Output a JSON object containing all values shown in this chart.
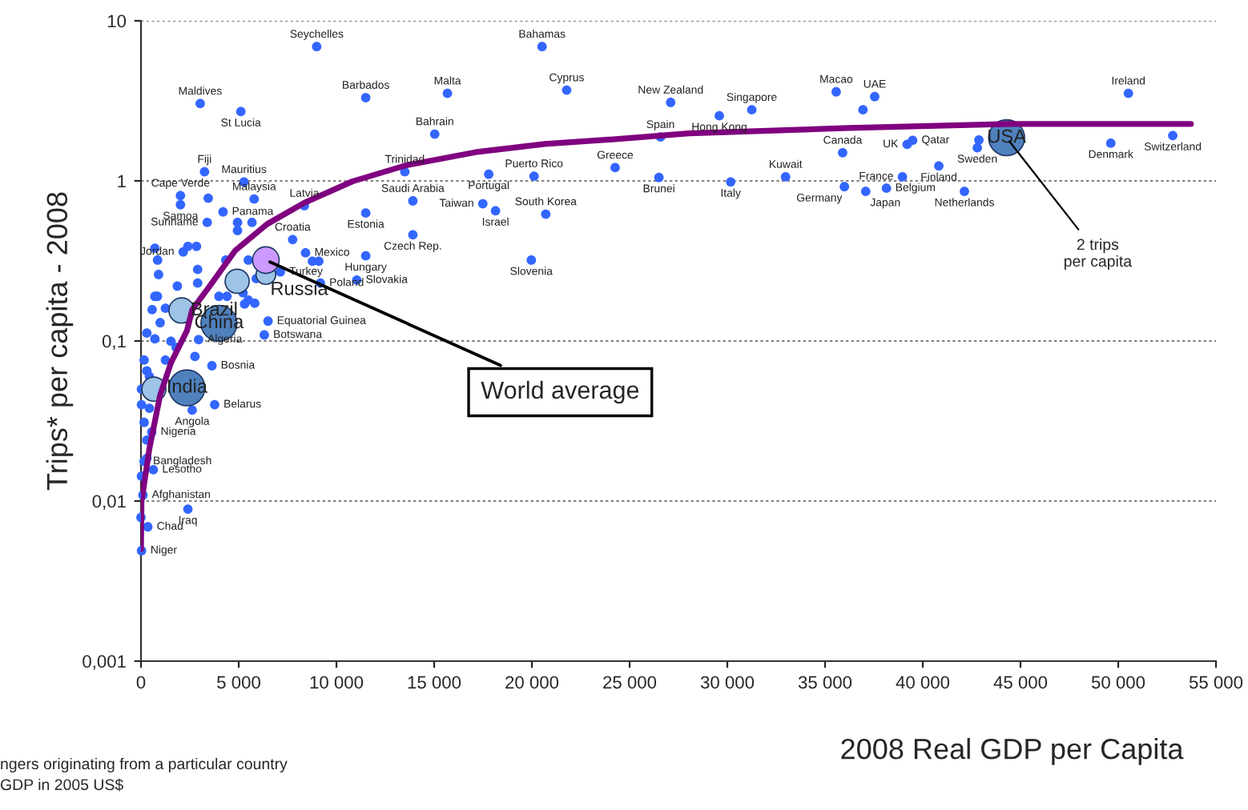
{
  "chart_data": {
    "type": "scatter",
    "xlabel": "2008 Real GDP per Capita",
    "ylabel": "Trips* per capita - 2008",
    "log": "y",
    "grid": "y",
    "legend": false,
    "xlim": [
      0,
      55000
    ],
    "ylim": [
      0.001,
      10
    ],
    "xticks": [
      0,
      {
        "value": 5000,
        "label": "5 000"
      },
      {
        "value": 10000,
        "label": "10 000"
      },
      {
        "value": 15000,
        "label": "15 000"
      },
      {
        "value": 20000,
        "label": "20 000"
      },
      {
        "value": 25000,
        "label": "25 000"
      },
      {
        "value": 30000,
        "label": "30 000"
      },
      {
        "value": 35000,
        "label": "35 000"
      },
      {
        "value": 40000,
        "label": "40 000"
      },
      {
        "value": 45000,
        "label": "45 000"
      },
      {
        "value": 50000,
        "label": "50 000"
      },
      {
        "value": 55000,
        "label": "55 000"
      }
    ],
    "yticks": [
      {
        "value": 0.001,
        "label": "0,001"
      },
      {
        "value": 0.01,
        "label": "0,01"
      },
      {
        "value": 0.1,
        "label": "0,1"
      },
      1,
      10
    ],
    "series": [
      {
        "color": "#3366ff",
        "x": [
          8990,
          3030,
          5110,
          11500,
          15680,
          15030,
          3250,
          5270,
          13500,
          20110,
          17790,
          17490,
          18140,
          20710,
          13910,
          11500,
          13910,
          11500,
          11040,
          19970,
          8360,
          7760,
          8420,
          7130,
          9180,
          5790,
          2020,
          2020,
          4200,
          3390,
          2160,
          6500,
          6310,
          2950,
          3630,
          3770,
          2620,
          550,
          160,
          630,
          100,
          2400,
          350,
          30,
          20520,
          21780,
          27100,
          29590,
          31250,
          26580,
          24260,
          26500,
          30170,
          32980,
          35570,
          37540,
          35900,
          38960,
          35990,
          37080,
          38140,
          40820,
          39200,
          39480,
          42130,
          42790,
          49620,
          52790,
          50520,
          36940,
          42870,
          710,
          850,
          900,
          2400,
          2840,
          2900,
          2900,
          3440,
          4940,
          4940,
          5680,
          4340,
          5490,
          5900,
          8770,
          9100,
          3990,
          4400,
          5220,
          5490,
          5820,
          5300,
          1860,
          1250,
          710,
          840,
          570,
          980,
          300,
          710,
          1530,
          160,
          1250,
          300,
          430,
          1800,
          2760,
          25,
          25,
          430,
          160,
          300,
          300,
          25,
          0
        ],
        "values": [
          6.9,
          3.04,
          2.71,
          3.31,
          3.52,
          1.96,
          1.14,
          0.985,
          1.14,
          1.07,
          1.1,
          0.72,
          0.65,
          0.62,
          0.75,
          0.63,
          0.46,
          0.34,
          0.24,
          0.32,
          0.7,
          0.43,
          0.355,
          0.27,
          0.23,
          0.77,
          0.81,
          0.71,
          0.64,
          0.55,
          0.36,
          0.133,
          0.109,
          0.102,
          0.07,
          0.04,
          0.037,
          0.027,
          0.0177,
          0.0157,
          0.0109,
          0.0089,
          0.0069,
          0.0049,
          6.9,
          3.69,
          3.09,
          2.55,
          2.78,
          1.88,
          1.21,
          1.05,
          0.985,
          1.06,
          3.6,
          3.36,
          1.5,
          1.06,
          0.92,
          0.86,
          0.9,
          1.24,
          1.69,
          1.79,
          0.86,
          1.61,
          1.72,
          1.92,
          3.52,
          2.78,
          1.8,
          0.38,
          0.32,
          0.26,
          0.39,
          0.39,
          0.28,
          0.23,
          0.78,
          0.55,
          0.49,
          0.55,
          0.32,
          0.32,
          0.245,
          0.315,
          0.315,
          0.19,
          0.19,
          0.2,
          0.18,
          0.172,
          0.17,
          0.22,
          0.16,
          0.19,
          0.19,
          0.157,
          0.13,
          0.112,
          0.103,
          0.0995,
          0.076,
          0.076,
          0.065,
          0.06,
          0.091,
          0.08,
          0.05,
          0.04,
          0.038,
          0.031,
          0.024,
          0.0185,
          0.0143,
          0.0079
        ]
      },
      {
        "type": "bubble",
        "x": [
          660,
          2080,
          4920,
          6390,
          6390,
          44290,
          3990,
          2350
        ],
        "values": [
          0.05,
          0.155,
          0.236,
          0.26,
          0.32,
          1.86,
          0.129,
          0.051
        ],
        "sizes": [
          0.45,
          0.5,
          0.45,
          0.3,
          0.55,
          1,
          1,
          1
        ],
        "colors": [
          "#9dc3e6",
          "#9dc3e6",
          "#9dc3e6",
          "#9dc3e6",
          "#cc99ff",
          "#4f81bd",
          "#4f81bd",
          "#4f81bd"
        ]
      },
      {
        "type": "line",
        "color": "#800080",
        "x": [
          0,
          25,
          434,
          984,
          1533,
          2353,
          2623,
          3443,
          4812,
          6451,
          8361,
          10820,
          13550,
          17110,
          20660,
          23940,
          28030,
          36230,
          44430,
          53720
        ],
        "values": [
          0.005,
          0.0099,
          0.0214,
          0.046,
          0.073,
          0.116,
          0.157,
          0.214,
          0.366,
          0.537,
          0.73,
          0.993,
          1.25,
          1.51,
          1.7,
          1.81,
          1.98,
          2.14,
          2.27,
          2.27
        ]
      }
    ],
    "annotations": [
      {
        "text": "Seychelles",
        "x": 8990,
        "y": 6.9
      },
      {
        "text": "Maldives",
        "x": 3030,
        "y": 3.04
      },
      {
        "text": "St Lucia",
        "x": 5110,
        "y": 2.71
      },
      {
        "text": "Barbados",
        "x": 11500,
        "y": 3.31
      },
      {
        "text": "Malta",
        "x": 15680,
        "y": 3.52
      },
      {
        "text": "Bahrain",
        "x": 15030,
        "y": 1.96
      },
      {
        "text": "Fiji",
        "x": 3250,
        "y": 1.14
      },
      {
        "text": "Mauritius",
        "x": 5270,
        "y": 0.985
      },
      {
        "text": "Trinidad",
        "x": 13500,
        "y": 1.14
      },
      {
        "text": "Puerto Rico",
        "x": 20110,
        "y": 1.07
      },
      {
        "text": "Portugal",
        "x": 17790,
        "y": 1.1
      },
      {
        "text": "Taiwan",
        "x": 17490,
        "y": 0.72
      },
      {
        "text": "Israel",
        "x": 18140,
        "y": 0.65
      },
      {
        "text": "South Korea",
        "x": 20710,
        "y": 0.62
      },
      {
        "text": "Saudi Arabia",
        "x": 13910,
        "y": 0.75
      },
      {
        "text": "Estonia",
        "x": 11500,
        "y": 0.63
      },
      {
        "text": "Czech Rep.",
        "x": 13910,
        "y": 0.46
      },
      {
        "text": "Hungary",
        "x": 11500,
        "y": 0.34
      },
      {
        "text": "Slovakia",
        "x": 11040,
        "y": 0.24
      },
      {
        "text": "Slovenia",
        "x": 19970,
        "y": 0.32
      },
      {
        "text": "Latvia",
        "x": 8360,
        "y": 0.7
      },
      {
        "text": "Croatia",
        "x": 7760,
        "y": 0.43
      },
      {
        "text": "Mexico",
        "x": 8420,
        "y": 0.355
      },
      {
        "text": "Turkey",
        "x": 7130,
        "y": 0.27
      },
      {
        "text": "Poland",
        "x": 9180,
        "y": 0.23
      },
      {
        "text": "Malaysia",
        "x": 5790,
        "y": 0.77
      },
      {
        "text": "Cape Verde",
        "x": 2020,
        "y": 0.81
      },
      {
        "text": "Samoa",
        "x": 2020,
        "y": 0.71
      },
      {
        "text": "Panama",
        "x": 4200,
        "y": 0.64
      },
      {
        "text": "Suriname",
        "x": 3390,
        "y": 0.55
      },
      {
        "text": "Jordan",
        "x": 2160,
        "y": 0.36
      },
      {
        "text": "Equatorial Guinea",
        "x": 6500,
        "y": 0.133
      },
      {
        "text": "Botswana",
        "x": 6310,
        "y": 0.109
      },
      {
        "text": "Algeria",
        "x": 2950,
        "y": 0.102
      },
      {
        "text": "Bosnia",
        "x": 3630,
        "y": 0.07
      },
      {
        "text": "Belarus",
        "x": 3770,
        "y": 0.04
      },
      {
        "text": "Angola",
        "x": 2620,
        "y": 0.037
      },
      {
        "text": "Nigeria",
        "x": 550,
        "y": 0.027
      },
      {
        "text": "Bangladesh",
        "x": 160,
        "y": 0.0177
      },
      {
        "text": "Lesotho",
        "x": 630,
        "y": 0.0157
      },
      {
        "text": "Afghanistan",
        "x": 100,
        "y": 0.0109
      },
      {
        "text": "Iraq",
        "x": 2400,
        "y": 0.0089
      },
      {
        "text": "Chad",
        "x": 350,
        "y": 0.0069
      },
      {
        "text": "Niger",
        "x": 30,
        "y": 0.0049
      },
      {
        "text": "Bahamas",
        "x": 20520,
        "y": 6.9
      },
      {
        "text": "Cyprus",
        "x": 21780,
        "y": 3.69
      },
      {
        "text": "New Zealand",
        "x": 27100,
        "y": 3.09
      },
      {
        "text": "Hong Kong",
        "x": 29590,
        "y": 2.55
      },
      {
        "text": "Singapore",
        "x": 31250,
        "y": 2.78
      },
      {
        "text": "Spain",
        "x": 26580,
        "y": 1.88
      },
      {
        "text": "Greece",
        "x": 24260,
        "y": 1.21
      },
      {
        "text": "Brunei",
        "x": 26500,
        "y": 1.05
      },
      {
        "text": "Italy",
        "x": 30170,
        "y": 0.985
      },
      {
        "text": "Kuwait",
        "x": 32980,
        "y": 1.06
      },
      {
        "text": "Macao",
        "x": 35570,
        "y": 3.6
      },
      {
        "text": "UAE",
        "x": 37540,
        "y": 3.36
      },
      {
        "text": "Canada",
        "x": 35900,
        "y": 1.5
      },
      {
        "text": "France",
        "x": 38960,
        "y": 1.06
      },
      {
        "text": "Germany",
        "x": 35990,
        "y": 0.92
      },
      {
        "text": "Japan",
        "x": 37080,
        "y": 0.86
      },
      {
        "text": "Belgium",
        "x": 38140,
        "y": 0.9
      },
      {
        "text": "Finland",
        "x": 40820,
        "y": 1.24
      },
      {
        "text": "UK",
        "x": 39200,
        "y": 1.69
      },
      {
        "text": "Qatar",
        "x": 39480,
        "y": 1.79
      },
      {
        "text": "Netherlands",
        "x": 42130,
        "y": 0.86
      },
      {
        "text": "Sweden",
        "x": 42790,
        "y": 1.61
      },
      {
        "text": "Denmark",
        "x": 49620,
        "y": 1.72
      },
      {
        "text": "Switzerland",
        "x": 52790,
        "y": 1.92
      },
      {
        "text": "Ireland",
        "x": 50520,
        "y": 3.52
      },
      {
        "text": "Russia",
        "x": 6390,
        "y": 0.26
      },
      {
        "text": "Brazil",
        "x": 2080,
        "y": 0.155
      },
      {
        "text": "China",
        "x": 3990,
        "y": 0.129
      },
      {
        "text": "India",
        "x": 2350,
        "y": 0.051
      },
      {
        "text": "USA",
        "x": 44290,
        "y": 1.86
      },
      {
        "text": "World average",
        "x": 6390,
        "y": 0.32
      },
      {
        "text": "2 trips\nper capita",
        "x": 44290,
        "y": 1.86
      },
      "ngers originating from a particular country",
      "GDP in 2005 US$"
    ]
  }
}
